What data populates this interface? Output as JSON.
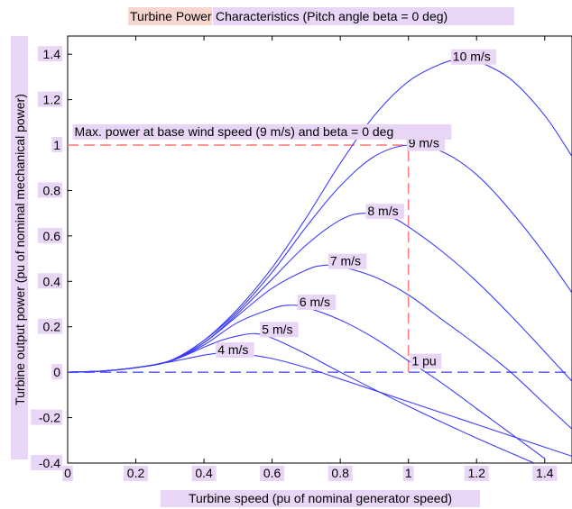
{
  "chart_data": {
    "type": "line",
    "title_parts": [
      "Turbine Power",
      "Characteristics (Pitch angle beta = 0 deg)"
    ],
    "xlabel": "Turbine speed (pu of nominal generator speed)",
    "ylabel": "Turbine output power (pu of nominal mechanical power)",
    "xlim": [
      0,
      1.48
    ],
    "ylim": [
      -0.4,
      1.48
    ],
    "xticks": [
      0,
      0.2,
      0.4,
      0.6,
      0.8,
      1,
      1.2,
      1.4
    ],
    "yticks": [
      -0.4,
      -0.2,
      0,
      0.2,
      0.4,
      0.6,
      0.8,
      1,
      1.2,
      1.4
    ],
    "grid": false,
    "line_color": "#3b3bff",
    "reference_color": "#ff8080",
    "series": [
      {
        "name": "4 m/s",
        "x": [
          0,
          0.1,
          0.2,
          0.3,
          0.35,
          0.4,
          0.45,
          0.5,
          0.6,
          0.7,
          0.8,
          1.0,
          1.2,
          1.4,
          1.48
        ],
        "y": [
          0,
          0.005,
          0.02,
          0.045,
          0.06,
          0.075,
          0.085,
          0.083,
          0.06,
          0.02,
          -0.03,
          -0.13,
          -0.23,
          -0.33,
          -0.37
        ]
      },
      {
        "name": "5 m/s",
        "x": [
          0,
          0.1,
          0.2,
          0.3,
          0.4,
          0.45,
          0.5,
          0.55,
          0.6,
          0.7,
          0.8,
          1.0,
          1.2,
          1.4
        ],
        "y": [
          0,
          0.005,
          0.02,
          0.048,
          0.11,
          0.14,
          0.16,
          0.17,
          0.15,
          0.08,
          0.0,
          -0.15,
          -0.29,
          -0.42
        ]
      },
      {
        "name": "6 m/s",
        "x": [
          0,
          0.1,
          0.2,
          0.3,
          0.4,
          0.5,
          0.6,
          0.65,
          0.7,
          0.8,
          0.9,
          1.0,
          1.1,
          1.2,
          1.3,
          1.4
        ],
        "y": [
          0,
          0.005,
          0.02,
          0.05,
          0.12,
          0.22,
          0.28,
          0.295,
          0.285,
          0.23,
          0.15,
          0.05,
          -0.05,
          -0.16,
          -0.27,
          -0.38
        ]
      },
      {
        "name": "7 m/s",
        "x": [
          0,
          0.1,
          0.2,
          0.3,
          0.4,
          0.5,
          0.6,
          0.7,
          0.75,
          0.8,
          0.9,
          1.0,
          1.1,
          1.2,
          1.3,
          1.4,
          1.48
        ],
        "y": [
          0,
          0.005,
          0.02,
          0.05,
          0.13,
          0.25,
          0.37,
          0.45,
          0.47,
          0.465,
          0.42,
          0.34,
          0.23,
          0.12,
          0.0,
          -0.14,
          -0.25
        ]
      },
      {
        "name": "8 m/s",
        "x": [
          0,
          0.1,
          0.2,
          0.3,
          0.4,
          0.5,
          0.6,
          0.7,
          0.8,
          0.87,
          0.95,
          1.0,
          1.1,
          1.2,
          1.3,
          1.4,
          1.48
        ],
        "y": [
          0,
          0.005,
          0.02,
          0.05,
          0.13,
          0.26,
          0.41,
          0.56,
          0.67,
          0.7,
          0.68,
          0.64,
          0.53,
          0.4,
          0.25,
          0.09,
          -0.04
        ]
      },
      {
        "name": "9 m/s",
        "x": [
          0,
          0.1,
          0.2,
          0.3,
          0.4,
          0.5,
          0.6,
          0.7,
          0.8,
          0.9,
          1.0,
          1.1,
          1.2,
          1.3,
          1.4,
          1.48
        ],
        "y": [
          0,
          0.005,
          0.02,
          0.05,
          0.14,
          0.27,
          0.44,
          0.64,
          0.82,
          0.95,
          1.0,
          0.97,
          0.87,
          0.71,
          0.52,
          0.35
        ]
      },
      {
        "name": "10 m/s",
        "x": [
          0,
          0.1,
          0.2,
          0.3,
          0.4,
          0.5,
          0.6,
          0.7,
          0.8,
          0.9,
          1.0,
          1.1,
          1.15,
          1.2,
          1.3,
          1.4,
          1.48
        ],
        "y": [
          0,
          0.005,
          0.02,
          0.05,
          0.14,
          0.28,
          0.46,
          0.68,
          0.92,
          1.13,
          1.28,
          1.36,
          1.375,
          1.37,
          1.29,
          1.13,
          0.95
        ]
      }
    ],
    "curve_labels": [
      {
        "text": "10 m/s",
        "x": 1.13,
        "y": 1.37
      },
      {
        "text": "9 m/s",
        "x": 1.0,
        "y": 0.99
      },
      {
        "text": "8 m/s",
        "x": 0.88,
        "y": 0.69
      },
      {
        "text": "7 m/s",
        "x": 0.77,
        "y": 0.47
      },
      {
        "text": "6 m/s",
        "x": 0.68,
        "y": 0.29
      },
      {
        "text": "5 m/s",
        "x": 0.57,
        "y": 0.17
      },
      {
        "text": "4 m/s",
        "x": 0.44,
        "y": 0.08
      }
    ],
    "annotations": [
      {
        "text": "Max. power at base wind speed (9 m/s) and beta = 0 deg",
        "x": 0.02,
        "y": 1.04
      },
      {
        "text": "1 pu",
        "x": 1.01,
        "y": 0.03
      }
    ],
    "reference_lines": [
      {
        "kind": "hline",
        "y": 1,
        "x_from": 0,
        "x_to": 1,
        "color": "#ff8080"
      },
      {
        "kind": "vline",
        "x": 1,
        "y_from": 0,
        "y_to": 1,
        "color": "#ff8080"
      },
      {
        "kind": "hline",
        "y": 0,
        "x_from": 0,
        "x_to": 1.48,
        "color": "#6a6aff"
      }
    ]
  }
}
